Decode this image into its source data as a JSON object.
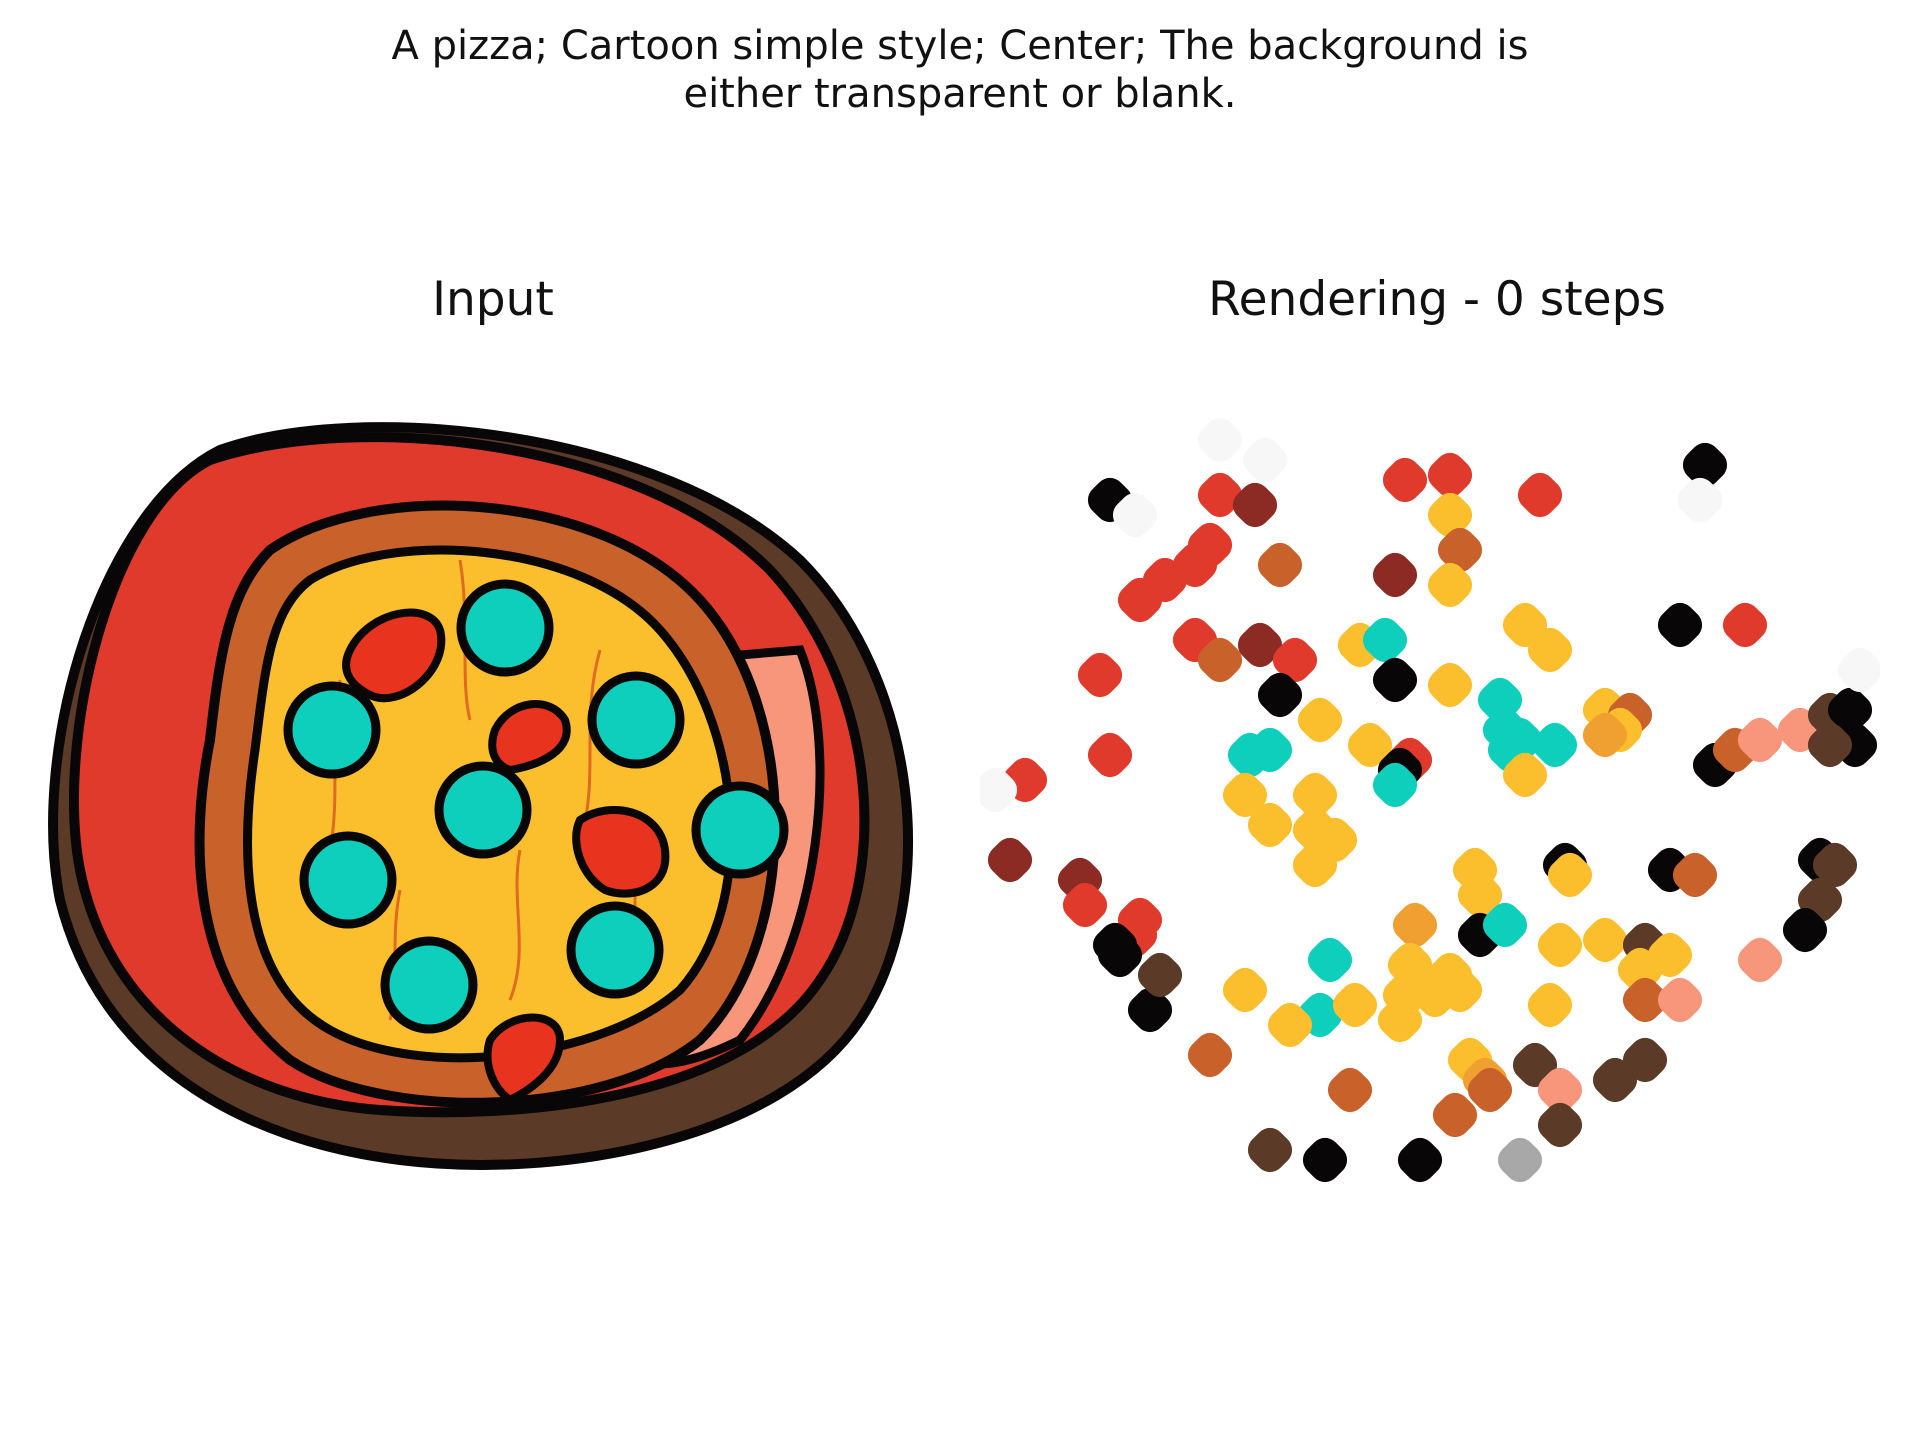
{
  "caption": {
    "line1": "A pizza; Cartoon simple style; Center; The background is",
    "line2": "either transparent or blank."
  },
  "panels": {
    "input_title": "Input",
    "rendering_title": "Rendering - 0 steps"
  },
  "palette": {
    "red": "#df3a2b",
    "dark_red": "#8c2a24",
    "orange": "#c9622a",
    "amber": "#f0a030",
    "cheese": "#fbbf2e",
    "teal": "#0dcfbc",
    "salmon": "#f7967a",
    "brown": "#5b3a28",
    "black": "#080606",
    "white": "#f7f7f7",
    "grey": "#a8a8a8"
  }
}
